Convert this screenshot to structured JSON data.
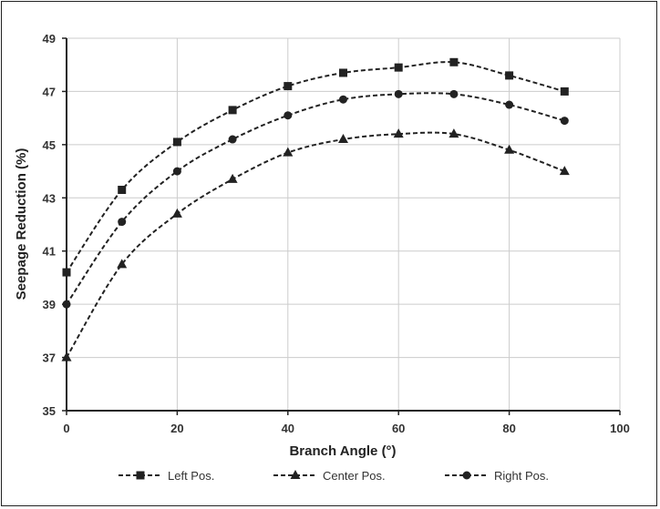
{
  "chart_data": {
    "type": "line",
    "title": "",
    "xlabel": "Branch Angle (°)",
    "ylabel": "Seepage Reduction (%)",
    "xlim": [
      0,
      100
    ],
    "ylim": [
      35,
      49
    ],
    "xticks": [
      0,
      20,
      40,
      60,
      80,
      100
    ],
    "yticks": [
      35,
      37,
      39,
      41,
      43,
      45,
      47,
      49
    ],
    "grid": "vertical and horizontal, light gray",
    "legend_position": "bottom",
    "line_style": "dashed",
    "x": [
      0,
      10,
      20,
      30,
      40,
      50,
      60,
      70,
      80,
      90
    ],
    "series": [
      {
        "name": "Left Pos.",
        "marker": "square",
        "values": [
          40.2,
          43.3,
          45.1,
          46.3,
          47.2,
          47.7,
          47.9,
          48.1,
          47.6,
          47.0
        ]
      },
      {
        "name": "Center Pos.",
        "marker": "triangle",
        "values": [
          37.0,
          40.5,
          42.4,
          43.7,
          44.7,
          45.2,
          45.4,
          45.4,
          44.8,
          44.0
        ]
      },
      {
        "name": "Right Pos.",
        "marker": "circle",
        "values": [
          39.0,
          42.1,
          44.0,
          45.2,
          46.1,
          46.7,
          46.9,
          46.9,
          46.5,
          45.9
        ]
      }
    ]
  }
}
